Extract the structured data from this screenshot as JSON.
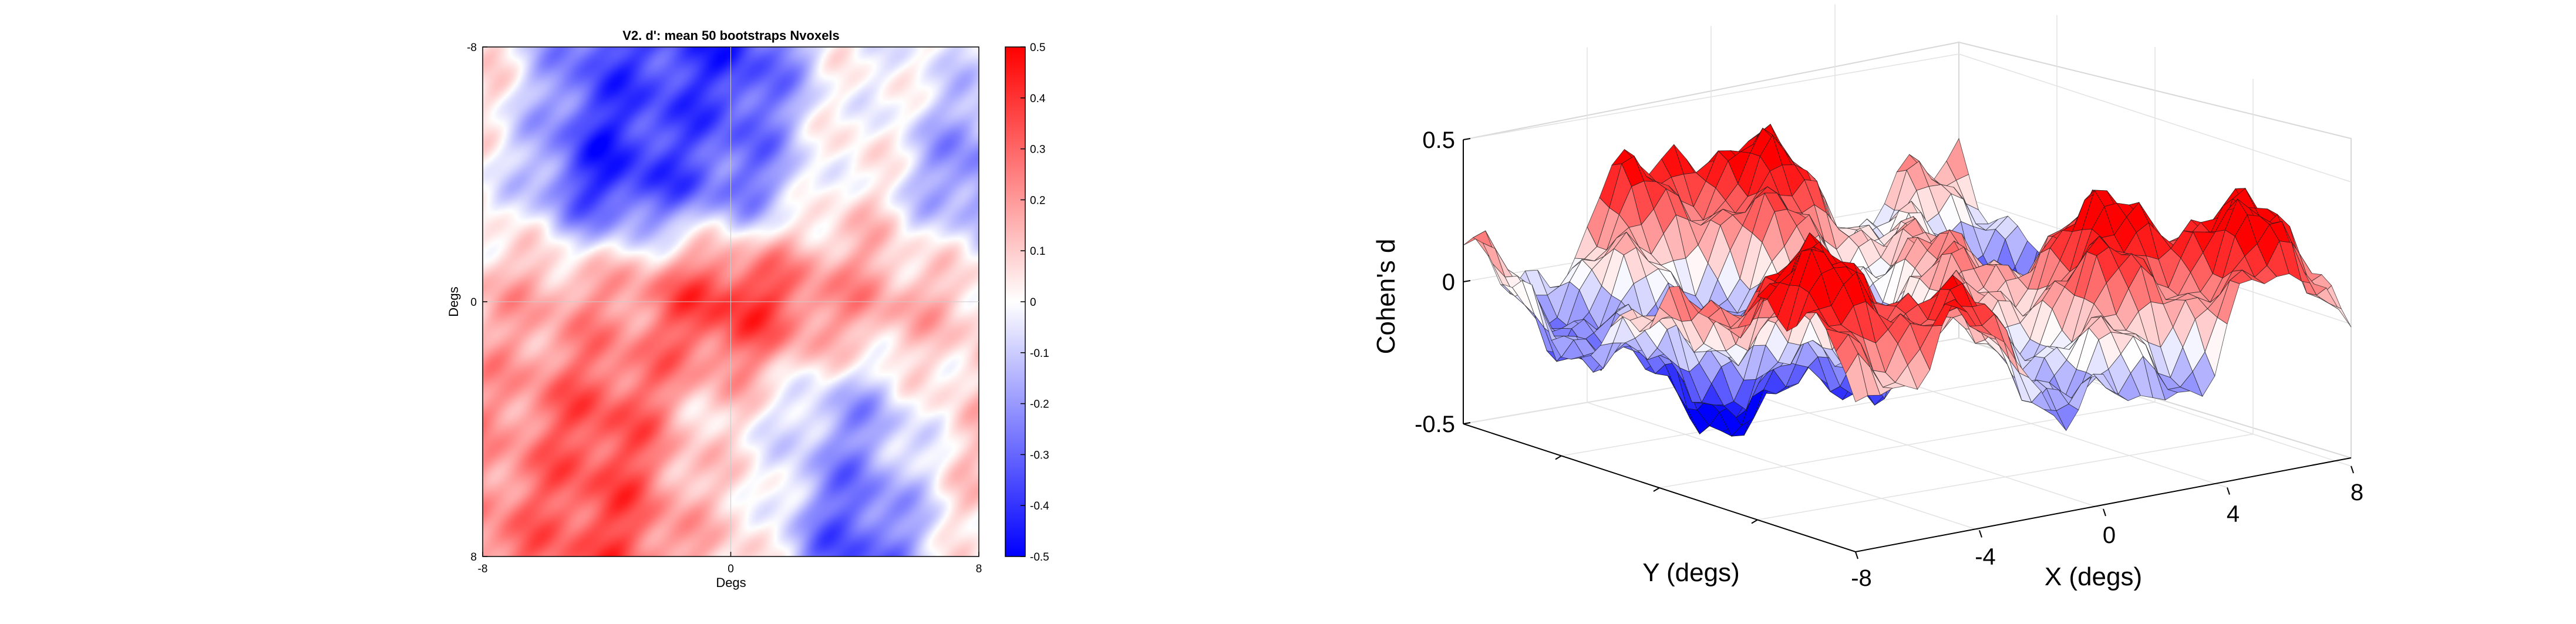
{
  "chart_data": [
    {
      "type": "heatmap",
      "title": "V2. d': mean 50 bootstraps Nvoxels",
      "xlabel": "Degs",
      "ylabel": "Degs",
      "x_ticks": [
        "-8",
        "0",
        "8"
      ],
      "y_ticks": [
        "-8",
        "0",
        "8"
      ],
      "xlim": [
        -8,
        8
      ],
      "ylim": [
        8,
        -8
      ],
      "grid_columns": [
        -8,
        -4,
        0,
        4,
        8
      ],
      "grid_rows": [
        -8,
        -4,
        0,
        4,
        8
      ],
      "values": [
        [
          0.05,
          -0.35,
          -0.4,
          0.0,
          -0.05
        ],
        [
          0.0,
          -0.42,
          -0.3,
          0.05,
          -0.25
        ],
        [
          0.15,
          0.2,
          0.4,
          0.2,
          0.1
        ],
        [
          0.2,
          0.35,
          0.05,
          -0.2,
          0.1
        ],
        [
          0.25,
          0.35,
          0.1,
          -0.35,
          0.05
        ]
      ],
      "colorbar": {
        "range": [
          -0.5,
          0.5
        ],
        "ticks": [
          "0.5",
          "0.4",
          "0.3",
          "0.2",
          "0.1",
          "0",
          "-0.1",
          "-0.2",
          "-0.3",
          "-0.4",
          "-0.5"
        ],
        "low_color": "#0000ff",
        "mid_color": "#ffffff",
        "high_color": "#ff0000"
      }
    },
    {
      "type": "surface",
      "xlabel": "X (degs)",
      "ylabel": "Y (degs)",
      "zlabel": "Cohen's d",
      "z_ticks": [
        "0.5",
        "0",
        "-0.5"
      ],
      "x_ticks": [
        "-8",
        "-4",
        "0",
        "4",
        "8"
      ],
      "zlim": [
        -0.5,
        0.5
      ],
      "xlim": [
        -8,
        8
      ],
      "ylim": [
        -8,
        8
      ],
      "colormap": [
        "#0000ff",
        "#ffffff",
        "#ff0000"
      ],
      "grid": true
    }
  ]
}
